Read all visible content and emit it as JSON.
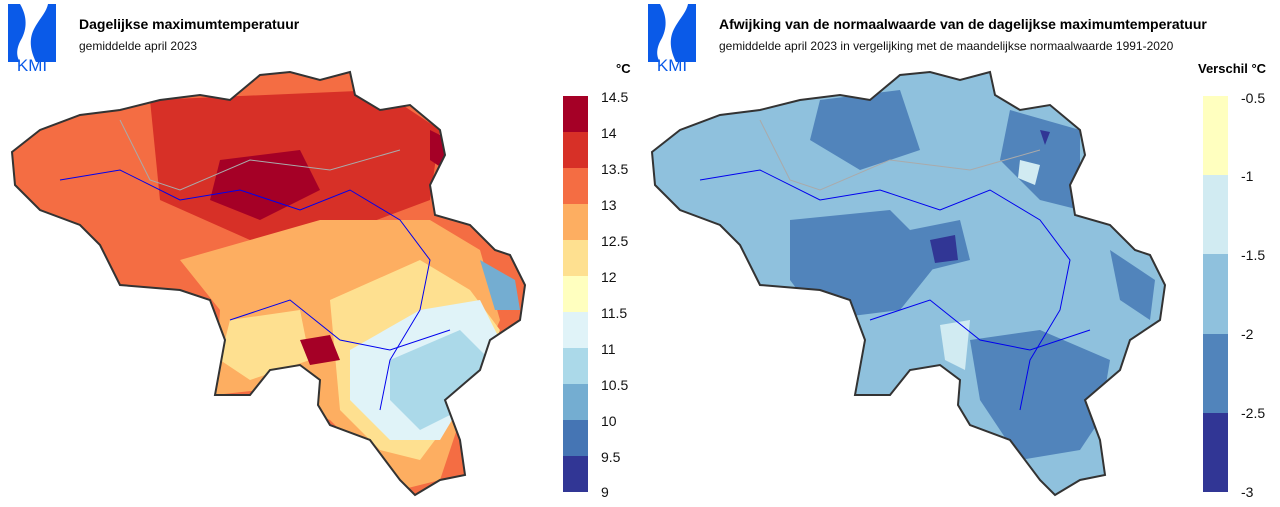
{
  "left": {
    "logo_text": "KMI",
    "title": "Dagelijkse maximumtemperatuur",
    "subtitle": "gemiddelde april 2023",
    "legend_unit": "°C",
    "legend_ticks": [
      "14.5",
      "14",
      "13.5",
      "13",
      "12.5",
      "12",
      "11.5",
      "11",
      "10.5",
      "10",
      "9.5",
      "9"
    ],
    "legend_colors": [
      "#a50026",
      "#d73027",
      "#f46d43",
      "#fdae61",
      "#fee090",
      "#ffffbf",
      "#e0f3f8",
      "#abd9e9",
      "#74add1",
      "#4575b4",
      "#313695"
    ]
  },
  "right": {
    "logo_text": "KMI",
    "title": "Afwijking van de normaalwaarde van de dagelijkse maximumtemperatuur",
    "subtitle": "gemiddelde april 2023 in vergelijking met de maandelijkse normaalwaarde 1991-2020",
    "legend_unit": "Verschil °C",
    "legend_ticks": [
      "-0.5",
      "-1",
      "-1.5",
      "-2",
      "-2.5",
      "-3"
    ],
    "legend_colors": [
      "#ffffbf",
      "#d1ebf2",
      "#8fc1dd",
      "#5184bb",
      "#313695"
    ]
  }
}
